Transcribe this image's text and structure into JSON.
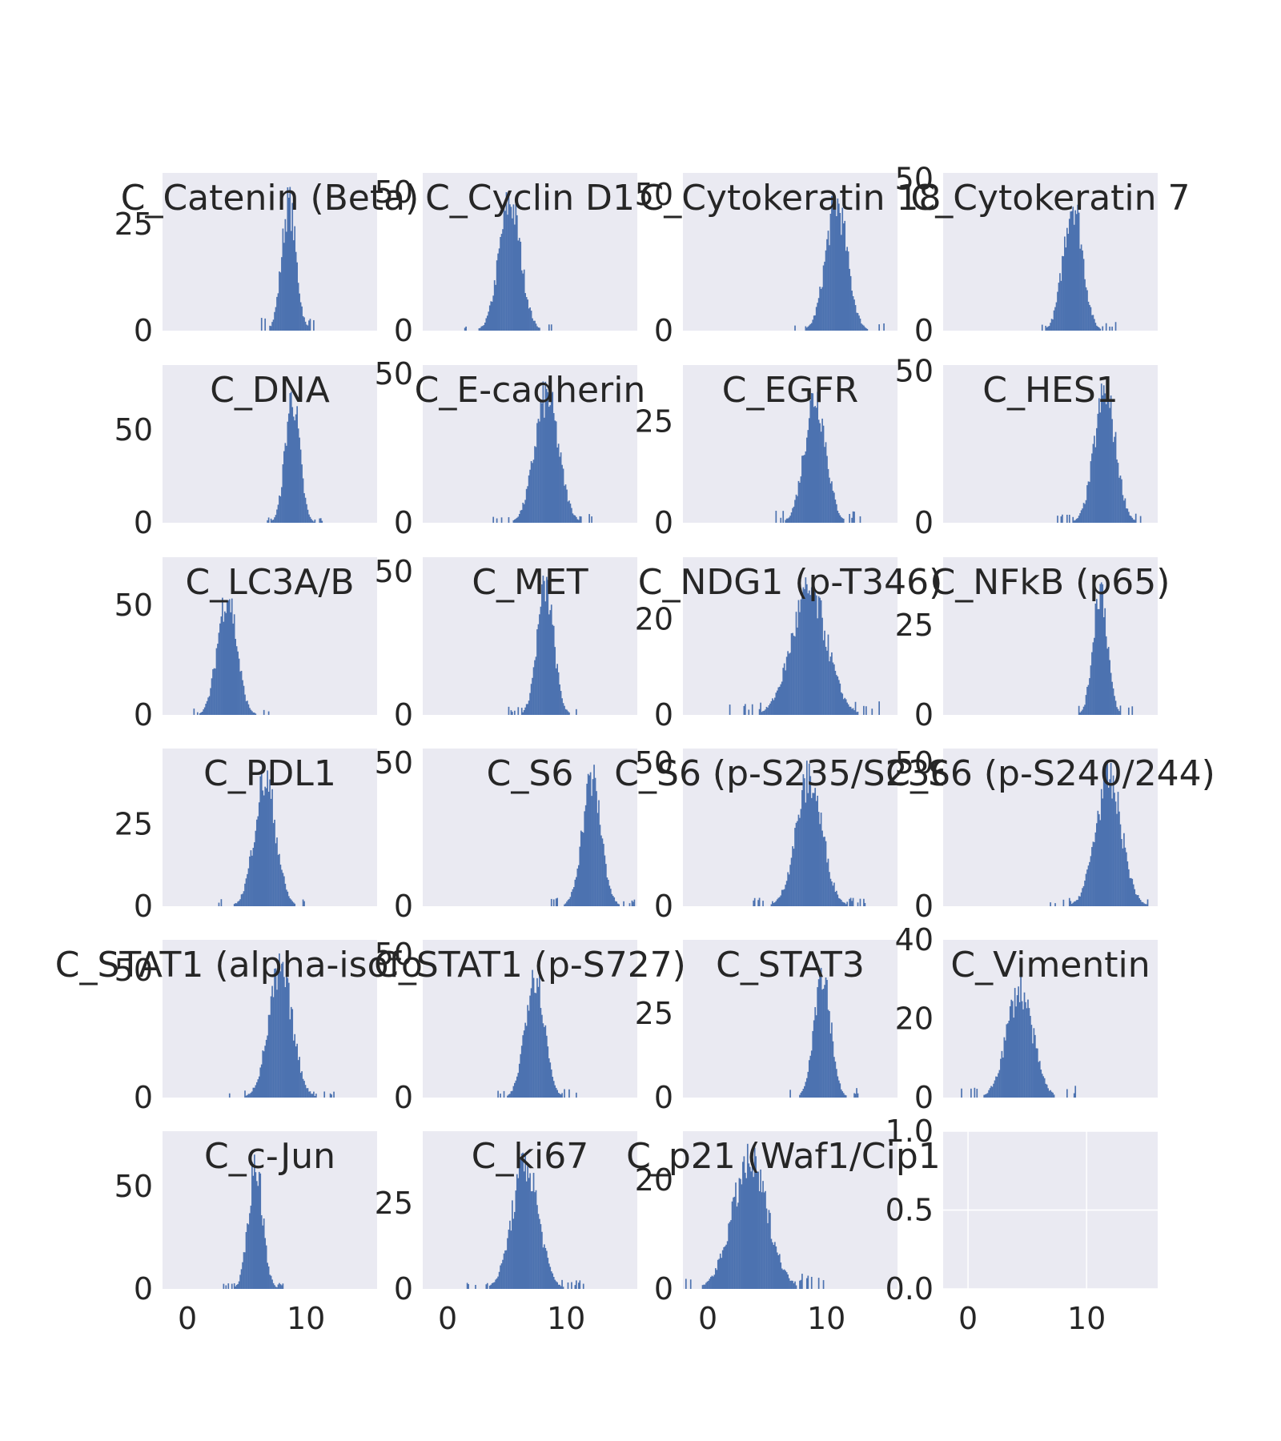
{
  "chart_data": {
    "type": "histogram-grid",
    "layout": {
      "rows": 6,
      "cols": 4
    },
    "xlim": [
      -2.1,
      16
    ],
    "x_ticks": [
      0,
      10
    ],
    "colors": {
      "background": "#EAEAF2",
      "bar": "#4C72B0",
      "grid": "#FFFFFF",
      "text": "#262626"
    },
    "panels": [
      {
        "title": "C_Catenin (Beta)",
        "center": 8.5,
        "spread": 0.6,
        "peak": 35,
        "ymax": 37,
        "yticks": [
          0,
          25
        ]
      },
      {
        "title": "C_Cyclin D1",
        "center": 5.2,
        "spread": 0.9,
        "peak": 55,
        "ymax": 57,
        "yticks": [
          0,
          50
        ]
      },
      {
        "title": "C_Cytokeratin 18",
        "center": 10.8,
        "spread": 0.9,
        "peak": 55,
        "ymax": 58,
        "yticks": [
          0,
          50
        ]
      },
      {
        "title": "C_Cytokeratin 7",
        "center": 8.8,
        "spread": 0.8,
        "peak": 50,
        "ymax": 52,
        "yticks": [
          0,
          50
        ]
      },
      {
        "title": "C_DNA",
        "center": 8.8,
        "spread": 0.6,
        "peak": 80,
        "ymax": 85,
        "yticks": [
          0,
          50
        ]
      },
      {
        "title": "C_E-cadherin",
        "center": 8.3,
        "spread": 1.0,
        "peak": 50,
        "ymax": 53,
        "yticks": [
          0,
          50
        ]
      },
      {
        "title": "C_EGFR",
        "center": 9.0,
        "spread": 0.9,
        "peak": 37,
        "ymax": 39,
        "yticks": [
          0,
          25
        ]
      },
      {
        "title": "C_HES1",
        "center": 11.5,
        "spread": 0.9,
        "peak": 50,
        "ymax": 52,
        "yticks": [
          0,
          50
        ]
      },
      {
        "title": "C_LC3A/B",
        "center": 3.3,
        "spread": 0.8,
        "peak": 65,
        "ymax": 72,
        "yticks": [
          0,
          50
        ]
      },
      {
        "title": "C_MET",
        "center": 8.2,
        "spread": 0.7,
        "peak": 52,
        "ymax": 55,
        "yticks": [
          0,
          50
        ]
      },
      {
        "title": "C_NDG1 (p-T346)",
        "center": 8.5,
        "spread": 1.5,
        "peak": 30,
        "ymax": 33,
        "yticks": [
          0,
          20
        ]
      },
      {
        "title": "C_NFkB (p65)",
        "center": 11.1,
        "spread": 0.6,
        "peak": 42,
        "ymax": 44,
        "yticks": [
          0,
          25
        ]
      },
      {
        "title": "C_PDL1",
        "center": 6.5,
        "spread": 0.9,
        "peak": 45,
        "ymax": 48,
        "yticks": [
          0,
          25
        ]
      },
      {
        "title": "C_S6",
        "center": 12.1,
        "spread": 0.8,
        "peak": 52,
        "ymax": 55,
        "yticks": [
          0,
          50
        ]
      },
      {
        "title": "C_S6 (p-S235/S236)",
        "center": 8.5,
        "spread": 1.1,
        "peak": 52,
        "ymax": 55,
        "yticks": [
          0,
          50
        ]
      },
      {
        "title": "C_S6 (p-S240/244)",
        "center": 11.8,
        "spread": 1.1,
        "peak": 52,
        "ymax": 55,
        "yticks": [
          0,
          50
        ]
      },
      {
        "title": "C_STAT1 (alpha-isoform)",
        "center": 7.8,
        "spread": 1.0,
        "peak": 58,
        "ymax": 62,
        "yticks": [
          0,
          50
        ]
      },
      {
        "title": "C_STAT1 (p-S727)",
        "center": 7.3,
        "spread": 0.8,
        "peak": 52,
        "ymax": 55,
        "yticks": [
          0,
          50
        ]
      },
      {
        "title": "C_STAT3",
        "center": 9.6,
        "spread": 0.7,
        "peak": 45,
        "ymax": 47,
        "yticks": [
          0,
          25
        ]
      },
      {
        "title": "C_Vimentin",
        "center": 4.3,
        "spread": 1.1,
        "peak": 32,
        "ymax": 40,
        "yticks": [
          0,
          20,
          40
        ]
      },
      {
        "title": "C_c-Jun",
        "center": 5.7,
        "spread": 0.6,
        "peak": 72,
        "ymax": 77,
        "yticks": [
          0,
          50
        ]
      },
      {
        "title": "C_ki67",
        "center": 6.5,
        "spread": 1.1,
        "peak": 43,
        "ymax": 46,
        "yticks": [
          0,
          25
        ]
      },
      {
        "title": "C_p21 (Waf1/Cip1)",
        "center": 3.5,
        "spread": 1.5,
        "peak": 27,
        "ymax": 29,
        "yticks": [
          0,
          20
        ]
      },
      {
        "title": "",
        "empty": true,
        "ymax": 1.0,
        "yticks": [
          0.0,
          0.5,
          1.0
        ],
        "ytick_labels": [
          "0.0",
          "0.5",
          "1.0"
        ]
      }
    ]
  }
}
